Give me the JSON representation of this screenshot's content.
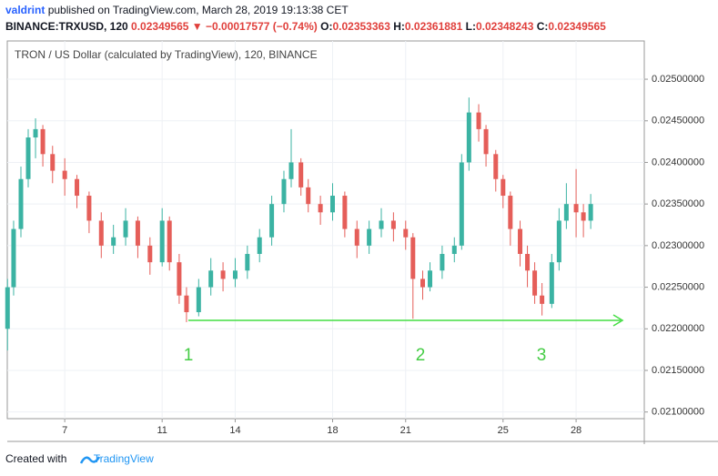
{
  "header": {
    "author": "valdrint",
    "published": "published on TradingView.com, March 28, 2019 19:13:38 CET",
    "symbol": "BINANCE:TRXUSD, 120",
    "last": "0.02349565",
    "change": "▼ −0.00017577 (−0.74%)",
    "o_label": "O:",
    "o": "0.02353363",
    "h_label": "H:",
    "h": "0.02361881",
    "l_label": "L:",
    "l": "0.02348243",
    "c_label": "C:",
    "c": "0.02349565"
  },
  "chart_data": {
    "type": "candlestick",
    "title": "TRON / US Dollar (calculated by TradingView), 120, BINANCE",
    "annotations": [
      "1",
      "2",
      "3"
    ],
    "up_color": "#3bb3a3",
    "down_color": "#e55e59",
    "grid": true,
    "xlim": [
      4.64,
      30.8
    ],
    "xticks": [
      7,
      11,
      14,
      18,
      21,
      25,
      28
    ],
    "ylim": [
      0.02092,
      0.02546
    ],
    "yticks": [
      {
        "value": 0.021,
        "label": "0.02100000"
      },
      {
        "value": 0.0215,
        "label": "0.02150000"
      },
      {
        "value": 0.022,
        "label": "0.02200000"
      },
      {
        "value": 0.0225,
        "label": "0.02250000"
      },
      {
        "value": 0.023,
        "label": "0.02300000"
      },
      {
        "value": 0.0235,
        "label": "0.02350000"
      },
      {
        "value": 0.024,
        "label": "0.02400000"
      },
      {
        "value": 0.0245,
        "label": "0.02450000"
      },
      {
        "value": 0.025,
        "label": "0.02500000"
      }
    ],
    "x": [
      4.65,
      4.9,
      5.2,
      5.5,
      5.8,
      6.1,
      6.5,
      7.0,
      7.5,
      8.0,
      8.5,
      9.0,
      9.5,
      10.0,
      10.5,
      11.0,
      11.3,
      11.7,
      12.0,
      12.5,
      13.0,
      13.5,
      14.0,
      14.5,
      15.0,
      15.5,
      16.0,
      16.3,
      16.7,
      17.0,
      17.5,
      18.0,
      18.5,
      19.0,
      19.5,
      20.0,
      20.5,
      21.0,
      21.3,
      21.7,
      22.0,
      22.5,
      23.0,
      23.3,
      23.6,
      24.0,
      24.3,
      24.7,
      25.0,
      25.3,
      25.7,
      26.0,
      26.3,
      26.6,
      27.0,
      27.3,
      27.6,
      28.0,
      28.3,
      28.6
    ],
    "open": [
      0.022,
      0.0225,
      0.0232,
      0.0238,
      0.0243,
      0.0244,
      0.0241,
      0.0239,
      0.0238,
      0.0236,
      0.0233,
      0.023,
      0.0231,
      0.0233,
      0.023,
      0.0228,
      0.0233,
      0.0228,
      0.0224,
      0.0222,
      0.0225,
      0.0227,
      0.0226,
      0.0227,
      0.0229,
      0.0231,
      0.0235,
      0.0238,
      0.024,
      0.0237,
      0.0235,
      0.0234,
      0.0236,
      0.0232,
      0.023,
      0.0232,
      0.0233,
      0.0232,
      0.0231,
      0.0226,
      0.0225,
      0.0227,
      0.0229,
      0.023,
      0.024,
      0.0246,
      0.0244,
      0.0241,
      0.0238,
      0.0236,
      0.0232,
      0.0229,
      0.0227,
      0.0224,
      0.0223,
      0.0228,
      0.0233,
      0.0235,
      0.0234,
      0.0233
    ],
    "high": [
      0.0226,
      0.0233,
      0.02395,
      0.0244,
      0.02453,
      0.02445,
      0.0242,
      0.02405,
      0.02385,
      0.02365,
      0.0234,
      0.02325,
      0.02345,
      0.02335,
      0.0231,
      0.02345,
      0.02335,
      0.0229,
      0.0225,
      0.0226,
      0.02285,
      0.0228,
      0.02285,
      0.023,
      0.0232,
      0.0236,
      0.0239,
      0.0244,
      0.02405,
      0.0238,
      0.0236,
      0.02375,
      0.02365,
      0.0233,
      0.0233,
      0.02345,
      0.0234,
      0.0233,
      0.02315,
      0.0227,
      0.0228,
      0.023,
      0.0231,
      0.0241,
      0.02478,
      0.0247,
      0.02445,
      0.02415,
      0.02385,
      0.02365,
      0.0233,
      0.023,
      0.0228,
      0.02255,
      0.0229,
      0.02345,
      0.02375,
      0.02392,
      0.0235,
      0.02362
    ],
    "low": [
      0.02174,
      0.0224,
      0.0231,
      0.0237,
      0.02405,
      0.02395,
      0.02375,
      0.0236,
      0.02345,
      0.02315,
      0.02285,
      0.0229,
      0.023,
      0.02285,
      0.02265,
      0.02275,
      0.0227,
      0.0223,
      0.02208,
      0.02215,
      0.0224,
      0.02245,
      0.0225,
      0.0226,
      0.0228,
      0.023,
      0.0234,
      0.0237,
      0.0236,
      0.0234,
      0.02325,
      0.0233,
      0.0231,
      0.02285,
      0.0229,
      0.0231,
      0.02305,
      0.02295,
      0.02212,
      0.02235,
      0.02245,
      0.0226,
      0.0228,
      0.02295,
      0.0239,
      0.02425,
      0.02395,
      0.02365,
      0.02345,
      0.023,
      0.02275,
      0.0225,
      0.0223,
      0.02216,
      0.02225,
      0.0227,
      0.0232,
      0.0231,
      0.0231,
      0.0232
    ],
    "close": [
      0.0225,
      0.0232,
      0.0238,
      0.0243,
      0.0244,
      0.0241,
      0.0239,
      0.0238,
      0.0236,
      0.0233,
      0.023,
      0.0231,
      0.0233,
      0.023,
      0.0228,
      0.0233,
      0.0228,
      0.0224,
      0.0222,
      0.0225,
      0.0227,
      0.0226,
      0.0227,
      0.0229,
      0.0231,
      0.0235,
      0.0238,
      0.024,
      0.0237,
      0.0235,
      0.0234,
      0.0236,
      0.0232,
      0.023,
      0.0232,
      0.0233,
      0.0232,
      0.0231,
      0.0226,
      0.0225,
      0.0227,
      0.0229,
      0.023,
      0.024,
      0.0246,
      0.0244,
      0.0241,
      0.0238,
      0.0236,
      0.0232,
      0.0229,
      0.0227,
      0.0224,
      0.0223,
      0.0228,
      0.0233,
      0.0235,
      0.0234,
      0.0233,
      0.0235
    ]
  },
  "footer": {
    "created": "Created with",
    "brand": "TradingView"
  }
}
